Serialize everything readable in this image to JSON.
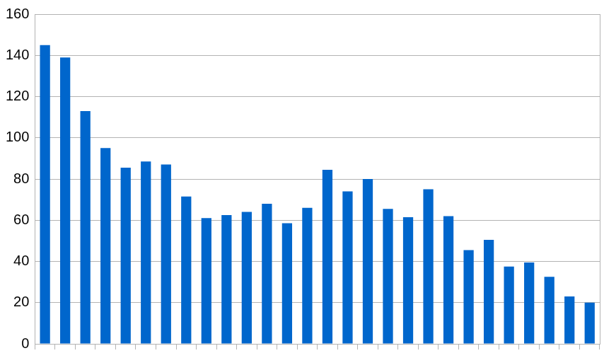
{
  "chart_data": {
    "type": "bar",
    "categories": [
      null,
      null,
      null,
      null,
      null,
      null,
      null,
      null,
      null,
      null,
      null,
      null,
      null,
      null,
      null,
      null,
      null,
      null,
      null,
      null,
      null,
      null,
      null,
      null,
      null,
      null,
      null,
      null
    ],
    "values": [
      145,
      139,
      113,
      95,
      85.5,
      88.5,
      87,
      71.5,
      61,
      62.5,
      64,
      68,
      58.5,
      66,
      84.5,
      74,
      80,
      65.5,
      61.5,
      75,
      62,
      45.5,
      50.5,
      37.5,
      39.5,
      32.5,
      23,
      20
    ],
    "color": "#0066cc",
    "ylim": [
      0,
      160
    ],
    "yticks": [
      0,
      20,
      40,
      60,
      80,
      100,
      120,
      140,
      160
    ],
    "grid": true,
    "tick_labels": "y"
  }
}
